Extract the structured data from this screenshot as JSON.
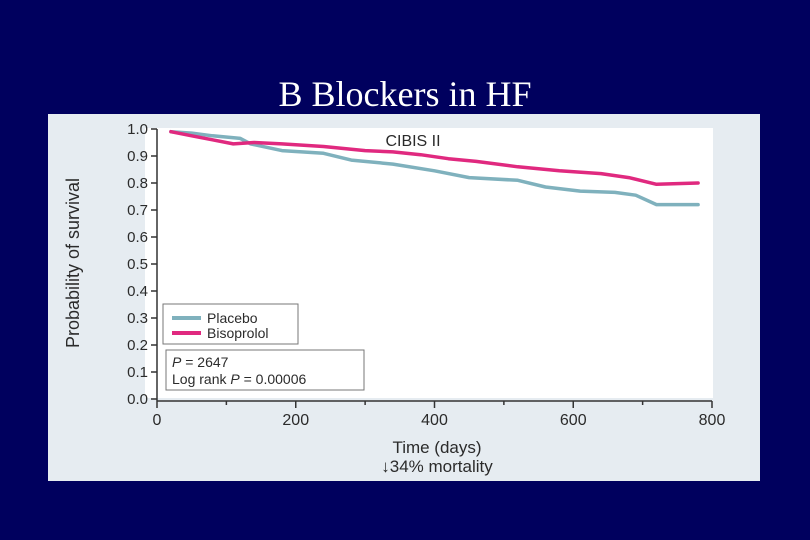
{
  "slide": {
    "title": "B Blockers in HF"
  },
  "colors": {
    "background": "#00005e",
    "placebo": "#7fb1bd",
    "bisoprolol": "#e0297f"
  },
  "chart_data": {
    "type": "line",
    "title": "CIBIS II",
    "xlabel": "Time (days)",
    "xlabel_sub": "↓34% mortality",
    "ylabel": "Probability of survival",
    "xlim": [
      0,
      800
    ],
    "ylim": [
      0,
      1.0
    ],
    "x_ticks": [
      "0",
      "200",
      "400",
      "600",
      "800"
    ],
    "y_ticks": [
      "0.0",
      "0.1",
      "0.2",
      "0.3",
      "0.4",
      "0.5",
      "0.6",
      "0.7",
      "0.8",
      "0.9",
      "1.0"
    ],
    "legend": {
      "placement": "lower-left"
    },
    "series": [
      {
        "name": "Placebo",
        "color": "#7fb1bd",
        "x": [
          20,
          50,
          80,
          120,
          135,
          180,
          240,
          280,
          340,
          400,
          450,
          520,
          560,
          610,
          660,
          690,
          720,
          780
        ],
        "y": [
          0.99,
          0.985,
          0.975,
          0.965,
          0.945,
          0.92,
          0.91,
          0.885,
          0.87,
          0.845,
          0.82,
          0.81,
          0.785,
          0.77,
          0.765,
          0.755,
          0.72,
          0.72
        ]
      },
      {
        "name": "Bisoprolol",
        "color": "#e0297f",
        "x": [
          20,
          50,
          80,
          110,
          140,
          180,
          240,
          300,
          340,
          380,
          420,
          460,
          520,
          580,
          640,
          680,
          720,
          780
        ],
        "y": [
          0.99,
          0.975,
          0.96,
          0.945,
          0.95,
          0.945,
          0.935,
          0.92,
          0.915,
          0.905,
          0.89,
          0.88,
          0.86,
          0.845,
          0.835,
          0.82,
          0.795,
          0.8
        ]
      }
    ],
    "annotation": {
      "p_label": "P",
      "p_value": "= 2647",
      "logrank_prefix": "Log rank",
      "logrank_p_label": "P",
      "logrank_value": "= 0.00006"
    }
  }
}
